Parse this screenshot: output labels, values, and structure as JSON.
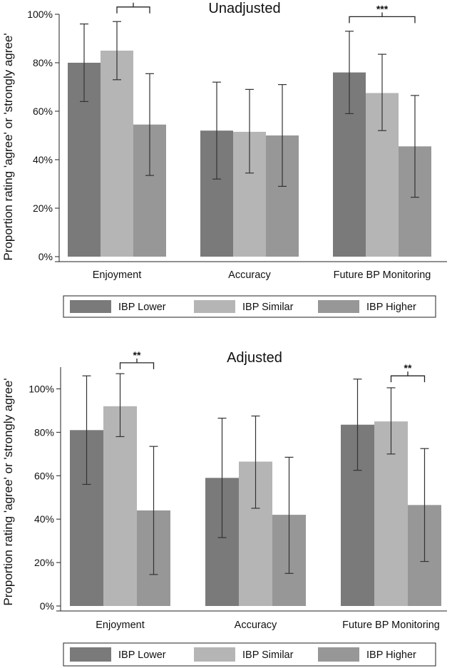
{
  "chart_data": [
    {
      "type": "bar",
      "title": "Unadjusted",
      "xlabel": "",
      "ylabel": "Proportion rating 'agree' or 'strongly agree'",
      "ylim": [
        0,
        1.0
      ],
      "yticks": [
        0,
        0.2,
        0.4,
        0.6,
        0.8,
        1.0
      ],
      "ytick_labels": [
        "0%",
        "20%",
        "40%",
        "60%",
        "80%",
        "100%"
      ],
      "categories": [
        "Enjoyment",
        "Accuracy",
        "Future BP Monitoring"
      ],
      "series": [
        {
          "name": "IBP Lower",
          "color": "#7a7a7a",
          "values": [
            0.8,
            0.52,
            0.76
          ],
          "ci_low": [
            0.64,
            0.32,
            0.59
          ],
          "ci_high": [
            0.96,
            0.72,
            0.93
          ]
        },
        {
          "name": "IBP Similar",
          "color": "#b5b5b5",
          "values": [
            0.85,
            0.515,
            0.675
          ],
          "ci_low": [
            0.73,
            0.345,
            0.52
          ],
          "ci_high": [
            0.97,
            0.69,
            0.835
          ]
        },
        {
          "name": "IBP Higher",
          "color": "#979797",
          "values": [
            0.545,
            0.5,
            0.455
          ],
          "ci_low": [
            0.335,
            0.29,
            0.245
          ],
          "ci_high": [
            0.755,
            0.71,
            0.665
          ]
        }
      ],
      "annotations": [
        {
          "text": "**",
          "category": 0,
          "from_series": 1,
          "to_series": 2,
          "level": 1.03
        },
        {
          "text": "***",
          "category": 2,
          "from_series": 0,
          "to_series": 2,
          "level": 0.99
        }
      ],
      "legend_placement": "bottom"
    },
    {
      "type": "bar",
      "title": "Adjusted",
      "xlabel": "",
      "ylabel": "Proportion rating 'agree' or 'strongly agree'",
      "ylim": [
        0,
        1.1
      ],
      "yticks": [
        0,
        0.2,
        0.4,
        0.6,
        0.8,
        1.0
      ],
      "ytick_labels": [
        "0%",
        "20%",
        "40%",
        "60%",
        "80%",
        "100%"
      ],
      "categories": [
        "Enjoyment",
        "Accuracy",
        "Future BP Monitoring"
      ],
      "series": [
        {
          "name": "IBP Lower",
          "color": "#7a7a7a",
          "values": [
            0.81,
            0.59,
            0.835
          ],
          "ci_low": [
            0.56,
            0.315,
            0.625
          ],
          "ci_high": [
            1.06,
            0.865,
            1.045
          ]
        },
        {
          "name": "IBP Similar",
          "color": "#b5b5b5",
          "values": [
            0.92,
            0.665,
            0.85
          ],
          "ci_low": [
            0.78,
            0.45,
            0.7
          ],
          "ci_high": [
            1.07,
            0.875,
            1.005
          ]
        },
        {
          "name": "IBP Higher",
          "color": "#979797",
          "values": [
            0.44,
            0.42,
            0.465
          ],
          "ci_low": [
            0.145,
            0.15,
            0.205
          ],
          "ci_high": [
            0.735,
            0.685,
            0.725
          ]
        }
      ],
      "annotations": [
        {
          "text": "**",
          "category": 0,
          "from_series": 1,
          "to_series": 2,
          "level": 1.12
        },
        {
          "text": "**",
          "category": 2,
          "from_series": 1,
          "to_series": 2,
          "level": 1.06
        }
      ],
      "legend_placement": "bottom"
    }
  ]
}
